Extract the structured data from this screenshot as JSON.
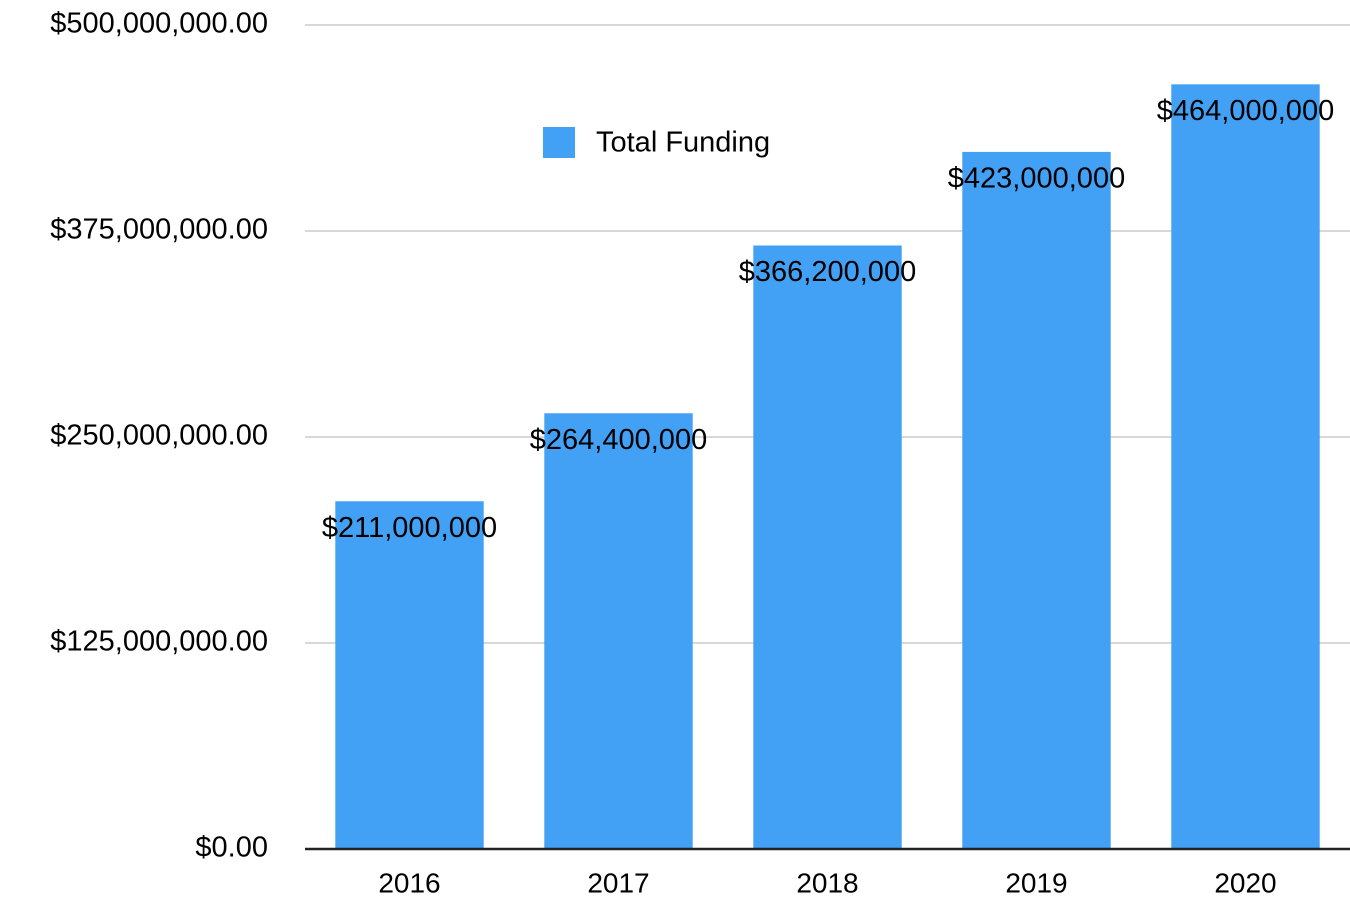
{
  "chart_data": {
    "type": "bar",
    "categories": [
      "2016",
      "2017",
      "2018",
      "2019",
      "2020"
    ],
    "series": [
      {
        "name": "Total Funding",
        "color": "#42a0f5",
        "values": [
          211000000,
          264400000,
          366200000,
          423000000,
          464000000
        ],
        "value_labels": [
          "$211,000,000",
          "$264,400,000",
          "$366,200,000",
          "$423,000,000",
          "$464,000,000"
        ]
      }
    ],
    "ylim": [
      0,
      500000000
    ],
    "yticks": [
      {
        "value": 0,
        "label": "$0.00"
      },
      {
        "value": 125000000,
        "label": "$125,000,000.00"
      },
      {
        "value": 250000000,
        "label": "$250,000,000.00"
      },
      {
        "value": 375000000,
        "label": "$375,000,000.00"
      },
      {
        "value": 500000000,
        "label": "$500,000,000.00"
      }
    ],
    "grid": true
  }
}
